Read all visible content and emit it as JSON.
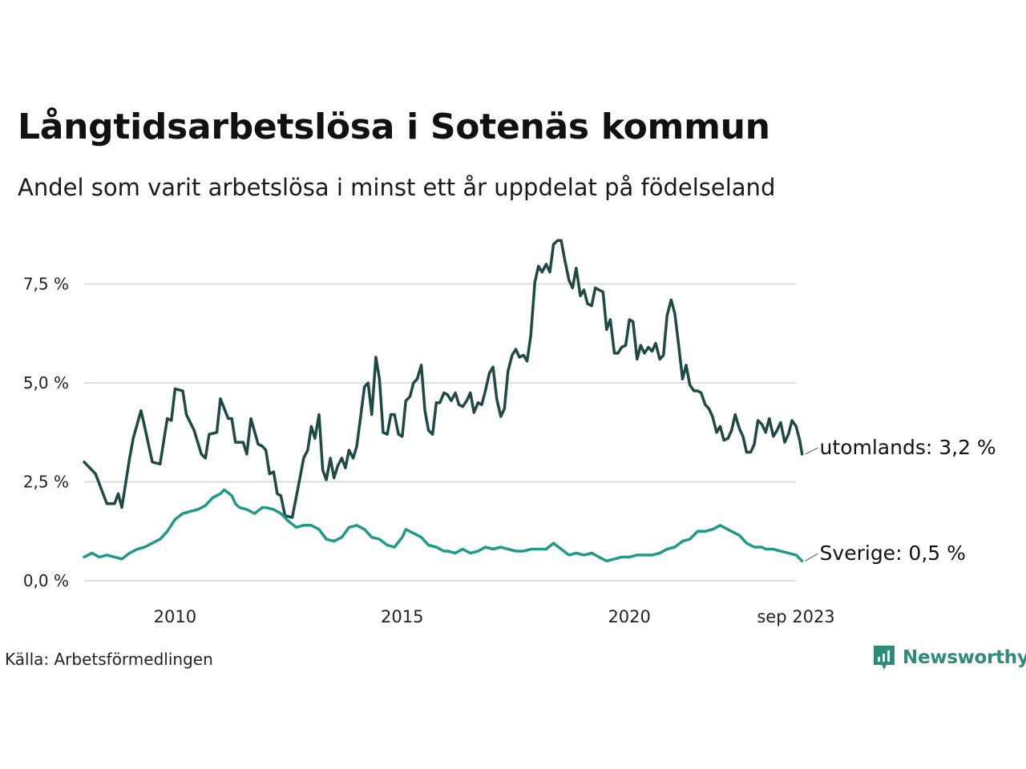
{
  "title": "Långtidsarbetslösa i Sotenäs kommun",
  "subtitle": "Andel som varit arbetslösa i minst ett år uppdelat på födelseland",
  "source": "Källa: Arbetsförmedlingen",
  "brand": "Newsworthy",
  "colors": {
    "utomlands": "#1f4a44",
    "sverige": "#1f9a8a",
    "grid": "#dddddd",
    "brand": "#2e8b7a"
  },
  "chart_data": {
    "type": "line",
    "title": "Långtidsarbetslösa i Sotenäs kommun",
    "xlabel": "",
    "ylabel": "",
    "x_start": {
      "year": 2008,
      "month": 1
    },
    "x_end": {
      "year": 2023,
      "month": 9
    },
    "ylim": [
      0,
      8.8
    ],
    "y_ticks": [
      {
        "value": 0,
        "label": "0,0 %"
      },
      {
        "value": 2.5,
        "label": "2,5 %"
      },
      {
        "value": 5,
        "label": "5,0 %"
      },
      {
        "value": 7.5,
        "label": "7,5 %"
      }
    ],
    "x_ticks": [
      {
        "value": 2010.0,
        "label": "2010"
      },
      {
        "value": 2015.0,
        "label": "2015"
      },
      {
        "value": 2020.0,
        "label": "2020"
      },
      {
        "value": 2023.667,
        "label": "sep 2023"
      }
    ],
    "series": [
      {
        "name": "utomlands",
        "end_label": "utomlands: 3,2 %",
        "anchors": [
          [
            2008.0,
            3.0
          ],
          [
            2008.25,
            2.7
          ],
          [
            2008.5,
            1.95
          ],
          [
            2008.67,
            1.95
          ],
          [
            2008.75,
            2.2
          ],
          [
            2008.83,
            1.85
          ],
          [
            2009.0,
            3.1
          ],
          [
            2009.08,
            3.6
          ],
          [
            2009.25,
            4.3
          ],
          [
            2009.33,
            3.9
          ],
          [
            2009.5,
            3.0
          ],
          [
            2009.67,
            2.95
          ],
          [
            2009.83,
            4.1
          ],
          [
            2009.92,
            4.05
          ],
          [
            2010.0,
            4.85
          ],
          [
            2010.17,
            4.8
          ],
          [
            2010.25,
            4.2
          ],
          [
            2010.42,
            3.8
          ],
          [
            2010.58,
            3.2
          ],
          [
            2010.67,
            3.1
          ],
          [
            2010.75,
            3.7
          ],
          [
            2010.92,
            3.75
          ],
          [
            2011.0,
            4.6
          ],
          [
            2011.17,
            4.1
          ],
          [
            2011.25,
            4.1
          ],
          [
            2011.33,
            3.5
          ],
          [
            2011.5,
            3.5
          ],
          [
            2011.58,
            3.2
          ],
          [
            2011.67,
            4.1
          ],
          [
            2011.83,
            3.45
          ],
          [
            2011.92,
            3.4
          ],
          [
            2012.0,
            3.3
          ],
          [
            2012.08,
            2.7
          ],
          [
            2012.17,
            2.75
          ],
          [
            2012.25,
            2.2
          ],
          [
            2012.33,
            2.15
          ],
          [
            2012.42,
            1.65
          ],
          [
            2012.58,
            1.6
          ],
          [
            2012.75,
            2.6
          ],
          [
            2012.83,
            3.1
          ],
          [
            2012.92,
            3.3
          ],
          [
            2013.0,
            3.9
          ],
          [
            2013.08,
            3.6
          ],
          [
            2013.17,
            4.2
          ],
          [
            2013.25,
            2.8
          ],
          [
            2013.33,
            2.55
          ],
          [
            2013.42,
            3.1
          ],
          [
            2013.5,
            2.6
          ],
          [
            2013.58,
            2.9
          ],
          [
            2013.67,
            3.1
          ],
          [
            2013.75,
            2.85
          ],
          [
            2013.83,
            3.3
          ],
          [
            2013.92,
            3.1
          ],
          [
            2014.0,
            3.4
          ],
          [
            2014.08,
            4.1
          ],
          [
            2014.17,
            4.9
          ],
          [
            2014.25,
            5.0
          ],
          [
            2014.33,
            4.2
          ],
          [
            2014.42,
            5.65
          ],
          [
            2014.5,
            5.1
          ],
          [
            2014.58,
            3.75
          ],
          [
            2014.67,
            3.7
          ],
          [
            2014.75,
            4.2
          ],
          [
            2014.83,
            4.2
          ],
          [
            2014.92,
            3.7
          ],
          [
            2015.0,
            3.65
          ],
          [
            2015.08,
            4.55
          ],
          [
            2015.17,
            4.65
          ],
          [
            2015.25,
            5.0
          ],
          [
            2015.33,
            5.1
          ],
          [
            2015.42,
            5.45
          ],
          [
            2015.5,
            4.3
          ],
          [
            2015.58,
            3.8
          ],
          [
            2015.67,
            3.7
          ],
          [
            2015.75,
            4.5
          ],
          [
            2015.83,
            4.5
          ],
          [
            2015.92,
            4.75
          ],
          [
            2016.0,
            4.7
          ],
          [
            2016.08,
            4.55
          ],
          [
            2016.17,
            4.75
          ],
          [
            2016.25,
            4.45
          ],
          [
            2016.33,
            4.4
          ],
          [
            2016.42,
            4.55
          ],
          [
            2016.5,
            4.75
          ],
          [
            2016.58,
            4.25
          ],
          [
            2016.67,
            4.5
          ],
          [
            2016.75,
            4.45
          ],
          [
            2016.83,
            4.8
          ],
          [
            2016.92,
            5.25
          ],
          [
            2017.0,
            5.4
          ],
          [
            2017.08,
            4.6
          ],
          [
            2017.17,
            4.15
          ],
          [
            2017.25,
            4.35
          ],
          [
            2017.33,
            5.3
          ],
          [
            2017.42,
            5.7
          ],
          [
            2017.5,
            5.85
          ],
          [
            2017.58,
            5.65
          ],
          [
            2017.67,
            5.7
          ],
          [
            2017.75,
            5.55
          ],
          [
            2017.83,
            6.2
          ],
          [
            2017.92,
            7.55
          ],
          [
            2018.0,
            7.95
          ],
          [
            2018.08,
            7.8
          ],
          [
            2018.17,
            8.0
          ],
          [
            2018.25,
            7.8
          ],
          [
            2018.33,
            8.5
          ],
          [
            2018.42,
            8.6
          ],
          [
            2018.5,
            8.6
          ],
          [
            2018.58,
            8.1
          ],
          [
            2018.67,
            7.6
          ],
          [
            2018.75,
            7.4
          ],
          [
            2018.83,
            7.9
          ],
          [
            2018.92,
            7.2
          ],
          [
            2019.0,
            7.35
          ],
          [
            2019.08,
            7.0
          ],
          [
            2019.17,
            6.95
          ],
          [
            2019.25,
            7.4
          ],
          [
            2019.33,
            7.35
          ],
          [
            2019.42,
            7.3
          ],
          [
            2019.5,
            6.35
          ],
          [
            2019.58,
            6.6
          ],
          [
            2019.67,
            5.75
          ],
          [
            2019.75,
            5.75
          ],
          [
            2019.83,
            5.9
          ],
          [
            2019.92,
            5.95
          ],
          [
            2020.0,
            6.6
          ],
          [
            2020.08,
            6.55
          ],
          [
            2020.17,
            5.6
          ],
          [
            2020.25,
            5.95
          ],
          [
            2020.33,
            5.75
          ],
          [
            2020.42,
            5.9
          ],
          [
            2020.5,
            5.8
          ],
          [
            2020.58,
            6.0
          ],
          [
            2020.67,
            5.6
          ],
          [
            2020.75,
            5.7
          ],
          [
            2020.83,
            6.7
          ],
          [
            2020.92,
            7.1
          ],
          [
            2021.0,
            6.75
          ],
          [
            2021.08,
            6.0
          ],
          [
            2021.17,
            5.1
          ],
          [
            2021.25,
            5.45
          ],
          [
            2021.33,
            4.95
          ],
          [
            2021.42,
            4.8
          ],
          [
            2021.5,
            4.8
          ],
          [
            2021.58,
            4.75
          ],
          [
            2021.67,
            4.45
          ],
          [
            2021.75,
            4.35
          ],
          [
            2021.83,
            4.15
          ],
          [
            2021.92,
            3.75
          ],
          [
            2022.0,
            3.9
          ],
          [
            2022.08,
            3.55
          ],
          [
            2022.17,
            3.6
          ],
          [
            2022.25,
            3.8
          ],
          [
            2022.33,
            4.2
          ],
          [
            2022.42,
            3.85
          ],
          [
            2022.5,
            3.65
          ],
          [
            2022.58,
            3.25
          ],
          [
            2022.67,
            3.25
          ],
          [
            2022.75,
            3.45
          ],
          [
            2022.83,
            4.05
          ],
          [
            2022.92,
            3.95
          ],
          [
            2023.0,
            3.75
          ],
          [
            2023.08,
            4.1
          ],
          [
            2023.17,
            3.65
          ],
          [
            2023.25,
            3.8
          ],
          [
            2023.33,
            4.0
          ],
          [
            2023.42,
            3.5
          ],
          [
            2023.5,
            3.7
          ],
          [
            2023.58,
            4.05
          ],
          [
            2023.67,
            3.9
          ],
          [
            2023.75,
            3.55
          ],
          [
            2023.8,
            3.2
          ]
        ]
      },
      {
        "name": "Sverige",
        "end_label": "Sverige: 0,5 %",
        "anchors": [
          [
            2008.0,
            0.6
          ],
          [
            2008.17,
            0.7
          ],
          [
            2008.33,
            0.6
          ],
          [
            2008.5,
            0.65
          ],
          [
            2008.67,
            0.6
          ],
          [
            2008.83,
            0.55
          ],
          [
            2009.0,
            0.7
          ],
          [
            2009.17,
            0.8
          ],
          [
            2009.33,
            0.85
          ],
          [
            2009.5,
            0.95
          ],
          [
            2009.67,
            1.05
          ],
          [
            2009.83,
            1.25
          ],
          [
            2010.0,
            1.55
          ],
          [
            2010.17,
            1.7
          ],
          [
            2010.33,
            1.75
          ],
          [
            2010.5,
            1.8
          ],
          [
            2010.67,
            1.9
          ],
          [
            2010.83,
            2.1
          ],
          [
            2011.0,
            2.2
          ],
          [
            2011.08,
            2.3
          ],
          [
            2011.25,
            2.15
          ],
          [
            2011.33,
            1.95
          ],
          [
            2011.42,
            1.85
          ],
          [
            2011.58,
            1.8
          ],
          [
            2011.75,
            1.7
          ],
          [
            2011.92,
            1.85
          ],
          [
            2012.0,
            1.85
          ],
          [
            2012.17,
            1.8
          ],
          [
            2012.33,
            1.7
          ],
          [
            2012.5,
            1.5
          ],
          [
            2012.67,
            1.35
          ],
          [
            2012.83,
            1.4
          ],
          [
            2013.0,
            1.4
          ],
          [
            2013.17,
            1.3
          ],
          [
            2013.33,
            1.05
          ],
          [
            2013.5,
            1.0
          ],
          [
            2013.67,
            1.1
          ],
          [
            2013.83,
            1.35
          ],
          [
            2014.0,
            1.4
          ],
          [
            2014.17,
            1.3
          ],
          [
            2014.33,
            1.1
          ],
          [
            2014.5,
            1.05
          ],
          [
            2014.67,
            0.9
          ],
          [
            2014.83,
            0.85
          ],
          [
            2015.0,
            1.1
          ],
          [
            2015.08,
            1.3
          ],
          [
            2015.25,
            1.2
          ],
          [
            2015.42,
            1.1
          ],
          [
            2015.58,
            0.9
          ],
          [
            2015.75,
            0.85
          ],
          [
            2015.92,
            0.75
          ],
          [
            2016.0,
            0.75
          ],
          [
            2016.17,
            0.7
          ],
          [
            2016.33,
            0.8
          ],
          [
            2016.5,
            0.7
          ],
          [
            2016.67,
            0.75
          ],
          [
            2016.83,
            0.85
          ],
          [
            2017.0,
            0.8
          ],
          [
            2017.17,
            0.85
          ],
          [
            2017.33,
            0.8
          ],
          [
            2017.5,
            0.75
          ],
          [
            2017.67,
            0.75
          ],
          [
            2017.83,
            0.8
          ],
          [
            2018.0,
            0.8
          ],
          [
            2018.17,
            0.8
          ],
          [
            2018.33,
            0.95
          ],
          [
            2018.5,
            0.8
          ],
          [
            2018.67,
            0.65
          ],
          [
            2018.83,
            0.7
          ],
          [
            2019.0,
            0.65
          ],
          [
            2019.17,
            0.7
          ],
          [
            2019.33,
            0.6
          ],
          [
            2019.5,
            0.5
          ],
          [
            2019.67,
            0.55
          ],
          [
            2019.83,
            0.6
          ],
          [
            2020.0,
            0.6
          ],
          [
            2020.17,
            0.65
          ],
          [
            2020.33,
            0.65
          ],
          [
            2020.5,
            0.65
          ],
          [
            2020.67,
            0.7
          ],
          [
            2020.83,
            0.8
          ],
          [
            2021.0,
            0.85
          ],
          [
            2021.17,
            1.0
          ],
          [
            2021.33,
            1.05
          ],
          [
            2021.5,
            1.25
          ],
          [
            2021.67,
            1.25
          ],
          [
            2021.83,
            1.3
          ],
          [
            2022.0,
            1.4
          ],
          [
            2022.08,
            1.35
          ],
          [
            2022.25,
            1.25
          ],
          [
            2022.42,
            1.15
          ],
          [
            2022.58,
            0.95
          ],
          [
            2022.75,
            0.85
          ],
          [
            2022.92,
            0.85
          ],
          [
            2023.0,
            0.8
          ],
          [
            2023.17,
            0.8
          ],
          [
            2023.33,
            0.75
          ],
          [
            2023.5,
            0.7
          ],
          [
            2023.67,
            0.65
          ],
          [
            2023.8,
            0.5
          ]
        ]
      }
    ]
  }
}
